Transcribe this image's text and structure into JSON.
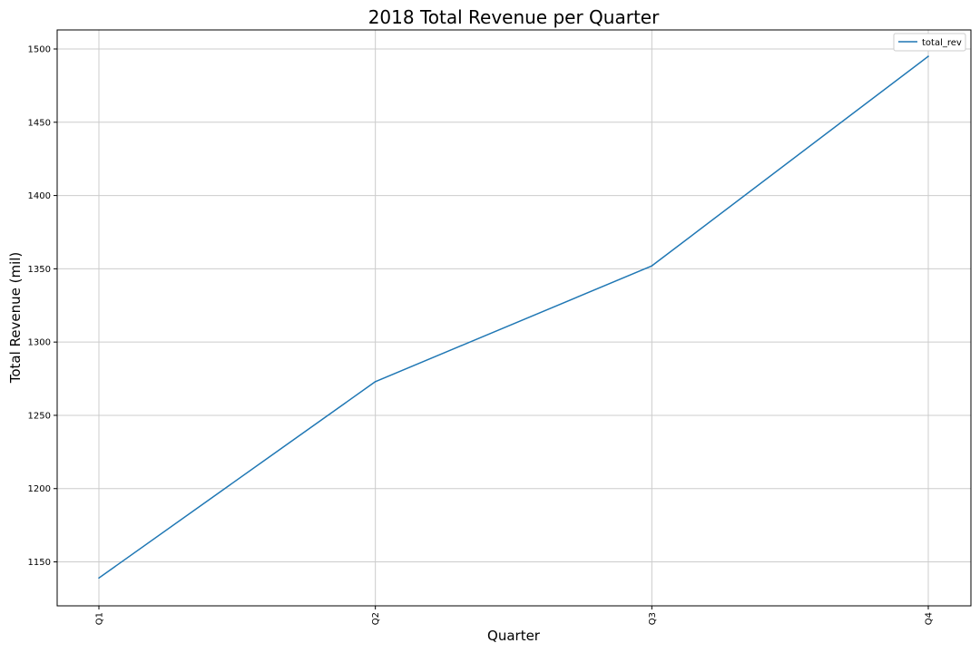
{
  "chart_data": {
    "type": "line",
    "title": "2018 Total Revenue per Quarter",
    "xlabel": "Quarter",
    "ylabel": "Total Revenue (mil)",
    "categories": [
      "Q1",
      "Q2",
      "Q3",
      "Q4"
    ],
    "series": [
      {
        "name": "total_rev",
        "values": [
          1139,
          1273,
          1352,
          1495
        ]
      }
    ],
    "ylim": [
      1120,
      1513
    ],
    "yticks": [
      1150,
      1200,
      1250,
      1300,
      1350,
      1400,
      1450,
      1500
    ],
    "grid": true,
    "legend_position": "top-right",
    "colors": {
      "series": "#1f77b4",
      "grid": "#cccccc"
    }
  }
}
